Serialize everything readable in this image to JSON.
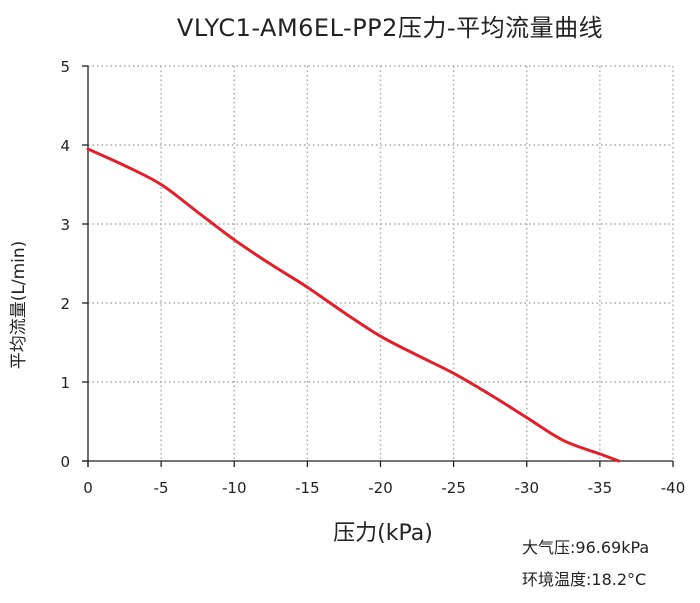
{
  "chart_data": {
    "type": "line",
    "title": "VLYC1-AM6EL-PP2压力-平均流量曲线",
    "xlabel": "压力(kPa)",
    "ylabel": "平均流量(L/min)",
    "xlim": [
      0,
      -40
    ],
    "ylim": [
      0,
      5
    ],
    "x_ticks": [
      0,
      -5,
      -10,
      -15,
      -20,
      -25,
      -30,
      -35,
      -40
    ],
    "x_tick_labels": [
      "0",
      "-5",
      "-10",
      "-15",
      "-20",
      "-25",
      "-30",
      "-35",
      "-40"
    ],
    "y_ticks": [
      0,
      1,
      2,
      3,
      4,
      5
    ],
    "y_tick_labels": [
      "0",
      "1",
      "2",
      "3",
      "4",
      "5"
    ],
    "grid": true,
    "series": [
      {
        "color": "#e0202a",
        "x": [
          0,
          -2.5,
          -5,
          -7.5,
          -10,
          -12.5,
          -15,
          -17.5,
          -20,
          -22.5,
          -25,
          -27.5,
          -30,
          -32.5,
          -35,
          -36.3
        ],
        "y": [
          3.95,
          3.74,
          3.5,
          3.15,
          2.8,
          2.49,
          2.2,
          1.88,
          1.58,
          1.34,
          1.11,
          0.84,
          0.55,
          0.26,
          0.09,
          0.0
        ]
      }
    ]
  },
  "notes": {
    "atmospheric_pressure": "大气压:96.69kPa",
    "environment_temperature": "环境温度:18.2°C"
  }
}
